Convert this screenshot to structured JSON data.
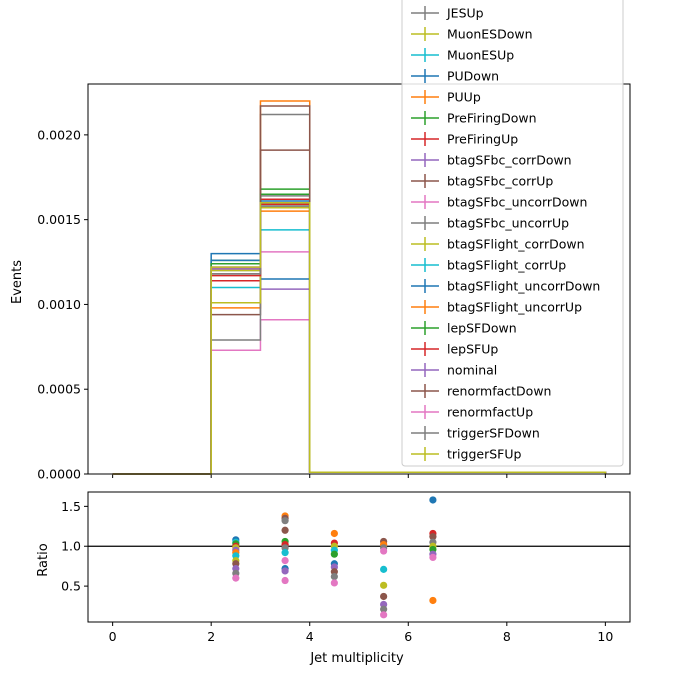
{
  "chart_data": [
    {
      "type": "line",
      "title": "",
      "xlabel": "",
      "ylabel": "Events",
      "xlim": [
        -0.5,
        10.5
      ],
      "ylim": [
        0,
        0.0023
      ],
      "yticks": [
        "0.0000",
        "0.0005",
        "0.0010",
        "0.0015",
        "0.0020"
      ],
      "ytick_values": [
        0,
        0.0005,
        0.001,
        0.0015,
        0.002
      ],
      "bin_edges": [
        0,
        2,
        3,
        4,
        10
      ],
      "legend_position": "upper right",
      "series": [
        {
          "name": "JESUp",
          "color": "#7f7f7f",
          "values": [
            0,
            0.0012,
            0.00212,
            1e-05
          ]
        },
        {
          "name": "MuonESDown",
          "color": "#bcbd22",
          "values": [
            0,
            0.0012,
            0.00157,
            1e-05
          ]
        },
        {
          "name": "MuonESUp",
          "color": "#17becf",
          "values": [
            0,
            0.0011,
            0.00144,
            1e-05
          ]
        },
        {
          "name": "PUDown",
          "color": "#1f77b4",
          "values": [
            0,
            0.0013,
            0.00115,
            1e-05
          ]
        },
        {
          "name": "PUUp",
          "color": "#ff7f0e",
          "values": [
            0,
            0.00098,
            0.0022,
            1e-05
          ]
        },
        {
          "name": "PreFiringDown",
          "color": "#2ca02c",
          "values": [
            0,
            0.00126,
            0.00168,
            1e-05
          ]
        },
        {
          "name": "PreFiringUp",
          "color": "#d62728",
          "values": [
            0,
            0.00114,
            0.00162,
            1e-05
          ]
        },
        {
          "name": "btagSFbc_corrDown",
          "color": "#9467bd",
          "values": [
            0,
            0.00122,
            0.00109,
            1e-05
          ]
        },
        {
          "name": "btagSFbc_corrUp",
          "color": "#8c564b",
          "values": [
            0,
            0.00094,
            0.00191,
            1e-05
          ]
        },
        {
          "name": "btagSFbc_uncorrDown",
          "color": "#e377c2",
          "values": [
            0,
            0.00073,
            0.00091,
            1e-05
          ]
        },
        {
          "name": "btagSFbc_uncorrUp",
          "color": "#7f7f7f",
          "values": [
            0,
            0.00079,
            0.00164,
            1e-05
          ]
        },
        {
          "name": "btagSFlight_corrDown",
          "color": "#bcbd22",
          "values": [
            0,
            0.00101,
            0.00158,
            1e-05
          ]
        },
        {
          "name": "btagSFlight_corrUp",
          "color": "#17becf",
          "values": [
            0,
            0.00124,
            0.00159,
            1e-05
          ]
        },
        {
          "name": "btagSFlight_uncorrDown",
          "color": "#1f77b4",
          "values": [
            0,
            0.00126,
            0.00161,
            1e-05
          ]
        },
        {
          "name": "btagSFlight_uncorrUp",
          "color": "#ff7f0e",
          "values": [
            0,
            0.00121,
            0.00155,
            1e-05
          ]
        },
        {
          "name": "lepSFDown",
          "color": "#2ca02c",
          "values": [
            0,
            0.00124,
            0.00165,
            1e-05
          ]
        },
        {
          "name": "lepSFUp",
          "color": "#d62728",
          "values": [
            0,
            0.00117,
            0.00159,
            1e-05
          ]
        },
        {
          "name": "nominal",
          "color": "#9467bd",
          "values": [
            0,
            0.00121,
            0.0016,
            1e-05
          ]
        },
        {
          "name": "renormfactDown",
          "color": "#8c564b",
          "values": [
            0,
            0.00118,
            0.00217,
            1e-05
          ]
        },
        {
          "name": "renormfactUp",
          "color": "#e377c2",
          "values": [
            0,
            0.00122,
            0.00131,
            1e-05
          ]
        },
        {
          "name": "triggerSFDown",
          "color": "#7f7f7f",
          "values": [
            0,
            0.00118,
            0.00158,
            1e-05
          ]
        },
        {
          "name": "triggerSFUp",
          "color": "#bcbd22",
          "values": [
            0,
            0.00122,
            0.0016,
            1e-05
          ]
        }
      ]
    },
    {
      "type": "scatter",
      "title": "",
      "xlabel": "Jet multiplicity",
      "ylabel": "Ratio",
      "xlim": [
        -0.5,
        10.5
      ],
      "ylim": [
        0.05,
        1.68
      ],
      "xticks": [
        "0",
        "2",
        "4",
        "6",
        "8",
        "10"
      ],
      "xtick_values": [
        0,
        2,
        4,
        6,
        8,
        10
      ],
      "yticks": [
        "0.5",
        "1.0",
        "1.5"
      ],
      "ytick_values": [
        0.5,
        1.0,
        1.5
      ],
      "reference_line": 1.0,
      "points": [
        {
          "x": 2.5,
          "y": 1.08,
          "color": "#1f77b4"
        },
        {
          "x": 2.5,
          "y": 1.05,
          "color": "#17becf"
        },
        {
          "x": 2.5,
          "y": 1.03,
          "color": "#2ca02c"
        },
        {
          "x": 2.5,
          "y": 1.0,
          "color": "#d62728"
        },
        {
          "x": 2.5,
          "y": 0.98,
          "color": "#bcbd22"
        },
        {
          "x": 2.5,
          "y": 0.95,
          "color": "#9467bd"
        },
        {
          "x": 2.5,
          "y": 0.92,
          "color": "#ff7f0e"
        },
        {
          "x": 2.5,
          "y": 0.88,
          "color": "#17becf"
        },
        {
          "x": 2.5,
          "y": 0.82,
          "color": "#bcbd22"
        },
        {
          "x": 2.5,
          "y": 0.78,
          "color": "#8c564b"
        },
        {
          "x": 2.5,
          "y": 0.72,
          "color": "#9467bd"
        },
        {
          "x": 2.5,
          "y": 0.66,
          "color": "#7f7f7f"
        },
        {
          "x": 2.5,
          "y": 0.6,
          "color": "#e377c2"
        },
        {
          "x": 3.5,
          "y": 1.38,
          "color": "#ff7f0e"
        },
        {
          "x": 3.5,
          "y": 1.35,
          "color": "#8c564b"
        },
        {
          "x": 3.5,
          "y": 1.32,
          "color": "#7f7f7f"
        },
        {
          "x": 3.5,
          "y": 1.2,
          "color": "#8c564b"
        },
        {
          "x": 3.5,
          "y": 1.06,
          "color": "#2ca02c"
        },
        {
          "x": 3.5,
          "y": 1.02,
          "color": "#d62728"
        },
        {
          "x": 3.5,
          "y": 0.98,
          "color": "#7f7f7f"
        },
        {
          "x": 3.5,
          "y": 0.92,
          "color": "#17becf"
        },
        {
          "x": 3.5,
          "y": 0.82,
          "color": "#e377c2"
        },
        {
          "x": 3.5,
          "y": 0.72,
          "color": "#1f77b4"
        },
        {
          "x": 3.5,
          "y": 0.69,
          "color": "#9467bd"
        },
        {
          "x": 3.5,
          "y": 0.57,
          "color": "#e377c2"
        },
        {
          "x": 4.5,
          "y": 1.16,
          "color": "#ff7f0e"
        },
        {
          "x": 4.5,
          "y": 1.04,
          "color": "#d62728"
        },
        {
          "x": 4.5,
          "y": 1.0,
          "color": "#bcbd22"
        },
        {
          "x": 4.5,
          "y": 0.95,
          "color": "#17becf"
        },
        {
          "x": 4.5,
          "y": 0.9,
          "color": "#2ca02c"
        },
        {
          "x": 4.5,
          "y": 0.78,
          "color": "#1f77b4"
        },
        {
          "x": 4.5,
          "y": 0.74,
          "color": "#9467bd"
        },
        {
          "x": 4.5,
          "y": 0.68,
          "color": "#8c564b"
        },
        {
          "x": 4.5,
          "y": 0.62,
          "color": "#7f7f7f"
        },
        {
          "x": 4.5,
          "y": 0.54,
          "color": "#e377c2"
        },
        {
          "x": 5.5,
          "y": 1.06,
          "color": "#8c564b"
        },
        {
          "x": 5.5,
          "y": 1.02,
          "color": "#ff7f0e"
        },
        {
          "x": 5.5,
          "y": 0.98,
          "color": "#7f7f7f"
        },
        {
          "x": 5.5,
          "y": 0.94,
          "color": "#e377c2"
        },
        {
          "x": 5.5,
          "y": 0.71,
          "color": "#17becf"
        },
        {
          "x": 5.5,
          "y": 0.51,
          "color": "#bcbd22"
        },
        {
          "x": 5.5,
          "y": 0.37,
          "color": "#8c564b"
        },
        {
          "x": 5.5,
          "y": 0.27,
          "color": "#9467bd"
        },
        {
          "x": 5.5,
          "y": 0.21,
          "color": "#7f7f7f"
        },
        {
          "x": 5.5,
          "y": 0.14,
          "color": "#e377c2"
        },
        {
          "x": 6.5,
          "y": 1.58,
          "color": "#1f77b4"
        },
        {
          "x": 6.5,
          "y": 1.16,
          "color": "#d62728"
        },
        {
          "x": 6.5,
          "y": 1.12,
          "color": "#8c564b"
        },
        {
          "x": 6.5,
          "y": 1.05,
          "color": "#7f7f7f"
        },
        {
          "x": 6.5,
          "y": 1.0,
          "color": "#bcbd22"
        },
        {
          "x": 6.5,
          "y": 0.96,
          "color": "#2ca02c"
        },
        {
          "x": 6.5,
          "y": 0.9,
          "color": "#9467bd"
        },
        {
          "x": 6.5,
          "y": 0.86,
          "color": "#e377c2"
        },
        {
          "x": 6.5,
          "y": 0.32,
          "color": "#ff7f0e"
        }
      ]
    }
  ]
}
